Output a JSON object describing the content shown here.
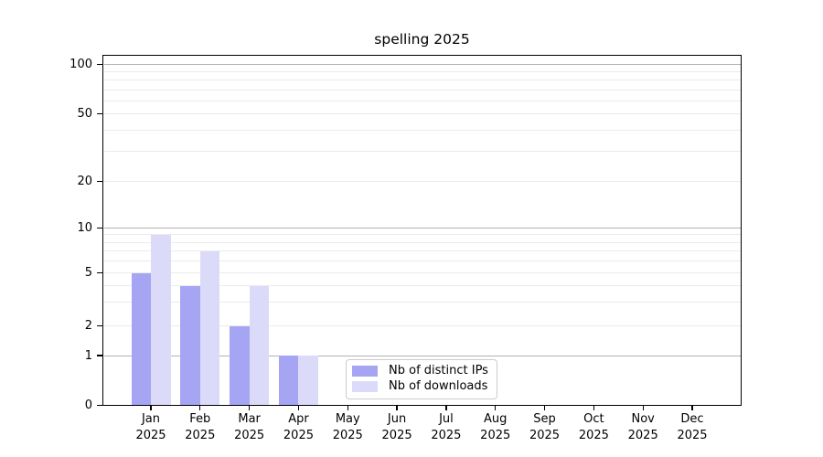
{
  "title": "spelling 2025",
  "chart_data": {
    "type": "bar",
    "title": "spelling 2025",
    "categories": [
      "Jan 2025",
      "Feb 2025",
      "Mar 2025",
      "Apr 2025",
      "May 2025",
      "Jun 2025",
      "Jul 2025",
      "Aug 2025",
      "Sep 2025",
      "Oct 2025",
      "Nov 2025",
      "Dec 2025"
    ],
    "series": [
      {
        "name": "Nb of distinct IPs",
        "color": "#a5a5f3",
        "values": [
          5,
          4,
          2,
          1,
          0,
          0,
          0,
          0,
          0,
          0,
          0,
          0
        ]
      },
      {
        "name": "Nb of downloads",
        "color": "#dbdbf9",
        "values": [
          9,
          7,
          4,
          1,
          0,
          0,
          0,
          0,
          0,
          0,
          0,
          0
        ]
      }
    ],
    "xlabel": "",
    "ylabel": "",
    "yticks": [
      0,
      1,
      2,
      5,
      10,
      20,
      50,
      100
    ],
    "yticks_minor": [
      3,
      4,
      6,
      7,
      8,
      9,
      30,
      40,
      60,
      70,
      80,
      90
    ],
    "yscale": "symlog (linear 0-1, logarithmic above 1)",
    "ylim": [
      0,
      115
    ],
    "grid": "horizontal gridlines on; darker at decades 1,10,100",
    "legend_position": "inside axes, lower center-left",
    "frame": true,
    "colors": {
      "grid_major": "#b3b3b3",
      "grid_minor": "#ebebeb",
      "spine": "#000000",
      "background": "#ffffff"
    }
  }
}
